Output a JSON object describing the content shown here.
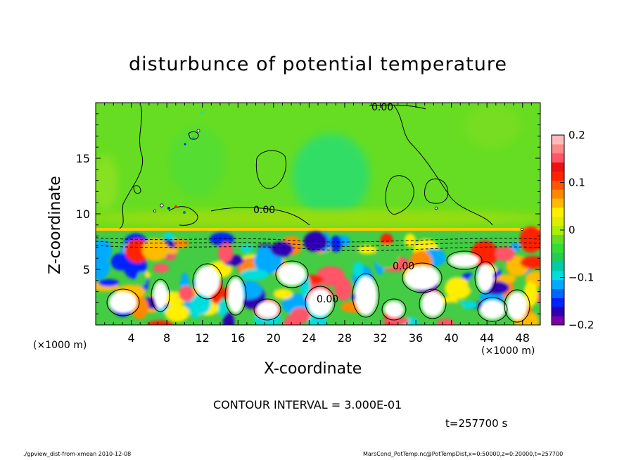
{
  "title": "disturbunce of potential temperature",
  "footer": {
    "left": "./gpview_dist-from-xmean   2010-12-08",
    "right": "MarsCond_PotTemp.nc@PotTempDist,x=0:50000,z=0:20000,t=257700"
  },
  "annotations": {
    "contour_interval": "CONTOUR INTERVAL = 3.000E-01",
    "time": "t=257700 s",
    "contour_labels": [
      "0.00",
      "0.00",
      "0.00",
      "0.00"
    ]
  },
  "chart_data": {
    "type": "heatmap",
    "title": "disturbunce of potential temperature",
    "xlabel": "X-coordinate",
    "ylabel": "Z-coordinate",
    "x_unit": "(×1000 m)",
    "x_ticks": [
      "4",
      "8",
      "12",
      "16",
      "20",
      "24",
      "28",
      "32",
      "36",
      "40",
      "44",
      "48"
    ],
    "y_ticks": [
      "5",
      "10",
      "15"
    ],
    "xlim": [
      0,
      50
    ],
    "ylim": [
      0,
      20
    ],
    "colorbar": {
      "ticks": [
        "0.2",
        "0.1",
        "0",
        "−0.1",
        "−0.2"
      ],
      "range": [
        -0.2,
        0.2
      ],
      "colors": [
        "#7a00a8",
        "#2d00b4",
        "#0022ff",
        "#0066ff",
        "#00aaff",
        "#00dddd",
        "#00ccaa",
        "#22cc55",
        "#33dd33",
        "#66dd22",
        "#aaee00",
        "#ddee00",
        "#ffee00",
        "#ffbb00",
        "#ff8800",
        "#ff5500",
        "#ff2200",
        "#ee1111",
        "#ff5566",
        "#ff8888",
        "#ffbbbb"
      ]
    },
    "field_description_values": {
      "upper_layer_z_range": [
        8.7,
        20
      ],
      "upper_layer_typical": 0.0,
      "lower_layer_z_range": [
        0,
        8.7
      ],
      "lower_layer_typical_range": [
        -0.2,
        0.2
      ]
    }
  }
}
